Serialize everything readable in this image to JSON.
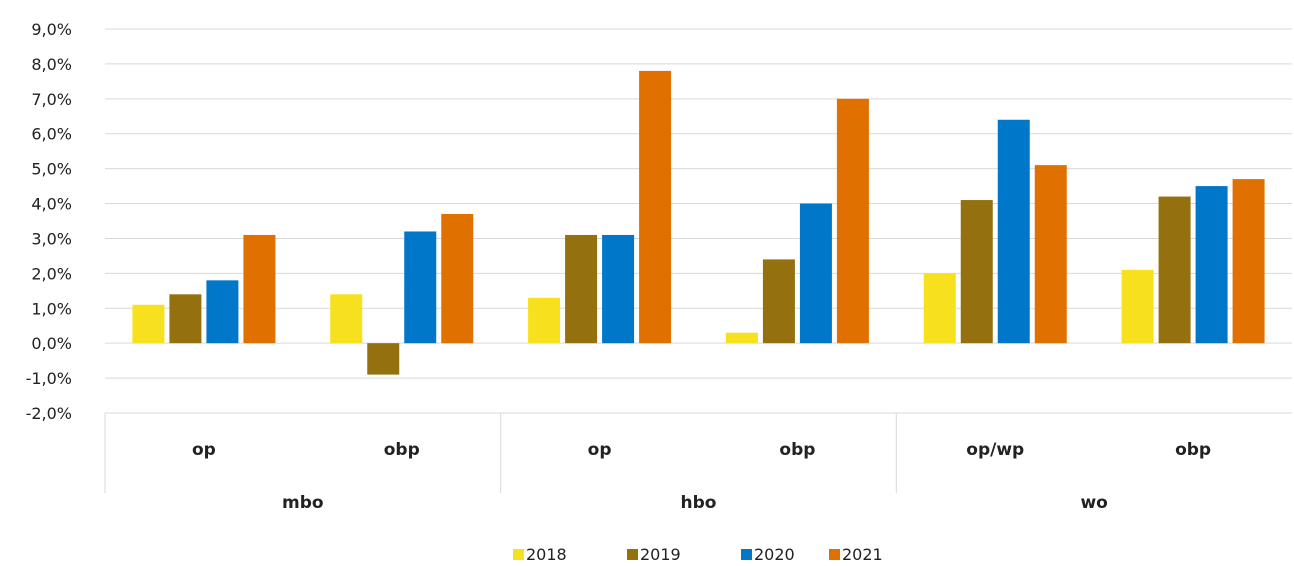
{
  "chart_data": {
    "type": "bar",
    "ylim": [
      -2.0,
      9.0
    ],
    "y_tick_step": 1.0,
    "y_tick_labels": [
      "-2,0%",
      "-1,0%",
      "0,0%",
      "1,0%",
      "2,0%",
      "3,0%",
      "4,0%",
      "5,0%",
      "6,0%",
      "7,0%",
      "8,0%",
      "9,0%"
    ],
    "grid": true,
    "legend_position": "bottom",
    "groups": [
      {
        "label": "mbo",
        "categories": [
          "op",
          "obp"
        ]
      },
      {
        "label": "hbo",
        "categories": [
          "op",
          "obp"
        ]
      },
      {
        "label": "wo",
        "categories": [
          "op/wp",
          "obp"
        ]
      }
    ],
    "categories": [
      "op",
      "obp",
      "op",
      "obp",
      "op/wp",
      "obp"
    ],
    "series": [
      {
        "name": "2018",
        "color": "#f7e11e",
        "values": [
          1.1,
          1.4,
          1.3,
          0.3,
          2.0,
          2.1
        ]
      },
      {
        "name": "2019",
        "color": "#94710e",
        "values": [
          1.4,
          -0.9,
          3.1,
          2.4,
          4.1,
          4.2
        ]
      },
      {
        "name": "2020",
        "color": "#0077c8",
        "values": [
          1.8,
          3.2,
          3.1,
          4.0,
          6.4,
          4.5
        ]
      },
      {
        "name": "2021",
        "color": "#e07000",
        "values": [
          3.1,
          3.7,
          7.8,
          7.0,
          5.1,
          4.7
        ]
      }
    ]
  }
}
